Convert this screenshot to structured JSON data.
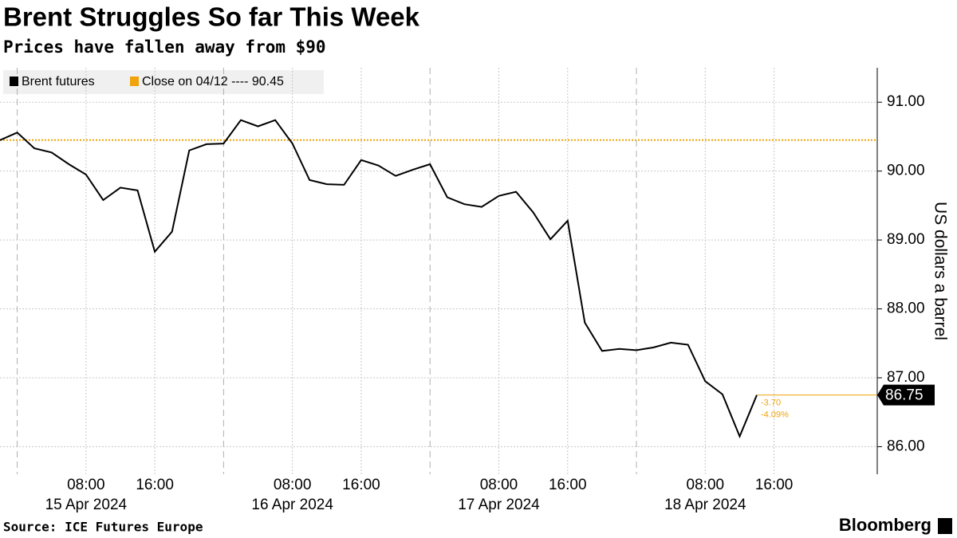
{
  "chart_data": {
    "type": "line",
    "title": "Brent Struggles So far This Week",
    "subtitle": "Prices have fallen away from $90",
    "y_label": "US dollars a barrel",
    "source": "Source: ICE Futures Europe",
    "brand": "Bloomberg",
    "x": [
      "2024-04-14 22:00",
      "2024-04-15 00:00",
      "2024-04-15 02:00",
      "2024-04-15 04:00",
      "2024-04-15 06:00",
      "2024-04-15 08:00",
      "2024-04-15 10:00",
      "2024-04-15 12:00",
      "2024-04-15 14:00",
      "2024-04-15 16:00",
      "2024-04-15 18:00",
      "2024-04-15 20:00",
      "2024-04-15 22:00",
      "2024-04-16 00:00",
      "2024-04-16 02:00",
      "2024-04-16 04:00",
      "2024-04-16 06:00",
      "2024-04-16 08:00",
      "2024-04-16 10:00",
      "2024-04-16 12:00",
      "2024-04-16 14:00",
      "2024-04-16 16:00",
      "2024-04-16 18:00",
      "2024-04-16 20:00",
      "2024-04-16 22:00",
      "2024-04-17 00:00",
      "2024-04-17 02:00",
      "2024-04-17 04:00",
      "2024-04-17 06:00",
      "2024-04-17 08:00",
      "2024-04-17 10:00",
      "2024-04-17 12:00",
      "2024-04-17 14:00",
      "2024-04-17 16:00",
      "2024-04-17 18:00",
      "2024-04-17 20:00",
      "2024-04-17 22:00",
      "2024-04-18 00:00",
      "2024-04-18 02:00",
      "2024-04-18 04:00",
      "2024-04-18 06:00",
      "2024-04-18 08:00",
      "2024-04-18 10:00",
      "2024-04-18 12:00",
      "2024-04-18 14:00"
    ],
    "series": [
      {
        "name": "Brent futures",
        "color": "#000000",
        "values": [
          90.45,
          90.56,
          90.33,
          90.27,
          90.1,
          89.95,
          89.58,
          89.76,
          89.72,
          88.83,
          89.12,
          90.3,
          90.39,
          90.4,
          90.74,
          90.65,
          90.74,
          90.4,
          89.87,
          89.81,
          89.8,
          90.16,
          90.08,
          89.93,
          90.02,
          90.1,
          89.62,
          89.52,
          89.48,
          89.64,
          89.7,
          89.4,
          89.01,
          89.28,
          87.8,
          87.39,
          87.42,
          87.4,
          87.44,
          87.51,
          87.48,
          86.95,
          86.76,
          86.15,
          86.75
        ]
      }
    ],
    "reference_line": {
      "name": "Close on 04/12 ---- 90.45",
      "value": 90.45,
      "color": "#f0a30a"
    },
    "annotations": [
      "-3.70",
      "-4.09%"
    ],
    "xlim": [
      "2024-04-14 22:00",
      "2024-04-19 04:00"
    ],
    "xticks": [
      {
        "value": "2024-04-15 08:00",
        "label": "08:00"
      },
      {
        "value": "2024-04-15 16:00",
        "label": "16:00"
      },
      {
        "value": "2024-04-16 08:00",
        "label": "08:00"
      },
      {
        "value": "2024-04-16 16:00",
        "label": "16:00"
      },
      {
        "value": "2024-04-17 08:00",
        "label": "08:00"
      },
      {
        "value": "2024-04-17 16:00",
        "label": "16:00"
      },
      {
        "value": "2024-04-18 08:00",
        "label": "08:00"
      },
      {
        "value": "2024-04-18 16:00",
        "label": "16:00"
      }
    ],
    "xtick_dates": [
      {
        "value": "2024-04-15 08:00",
        "label": "15 Apr 2024"
      },
      {
        "value": "2024-04-16 08:00",
        "label": "16 Apr 2024"
      },
      {
        "value": "2024-04-17 08:00",
        "label": "17 Apr 2024"
      },
      {
        "value": "2024-04-18 08:00",
        "label": "18 Apr 2024"
      }
    ],
    "ylim": [
      85.6,
      91.5
    ],
    "yticks": [
      {
        "value": 86,
        "label": "86.00"
      },
      {
        "value": 87,
        "label": "87.00"
      },
      {
        "value": 88,
        "label": "88.00"
      },
      {
        "value": 89,
        "label": "89.00"
      },
      {
        "value": 90,
        "label": "90.00"
      },
      {
        "value": 91,
        "label": "91.00"
      }
    ],
    "grid": true
  }
}
